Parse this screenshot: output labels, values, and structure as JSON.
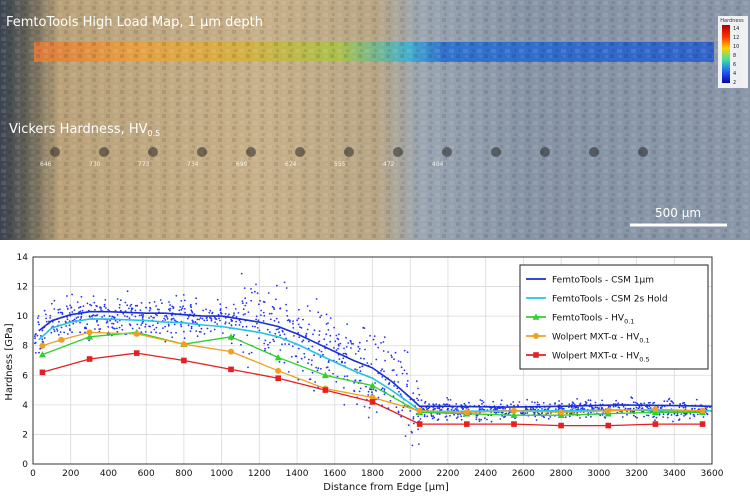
{
  "micrograph": {
    "map_title": "FemtoTools High Load Map, 1 µm depth",
    "vickers_title": "Vickers Hardness, HV",
    "vickers_sub": "0.5",
    "scalebar_label": "500 µm",
    "colorbar_title": "Hardness",
    "colorbar_ticks": [
      "14",
      "12",
      "10",
      "8",
      "6",
      "4",
      "2"
    ],
    "indent_values": [
      "646",
      "730",
      "773",
      "734",
      "690",
      "624",
      "555",
      "472",
      "404"
    ]
  },
  "colors": {
    "csm1": "#1a2fd0",
    "csm2": "#22c4e0",
    "hv01": "#2ed12e",
    "wolpert01": "#f0a020",
    "wolpert05": "#e62020",
    "scatter": "#2233ee"
  },
  "chart_data": {
    "type": "line",
    "xlabel": "Distance from Edge [µm]",
    "ylabel": "Hardness [GPa]",
    "xlim": [
      0,
      3600
    ],
    "ylim": [
      0,
      14
    ],
    "x_ticks": [
      0,
      200,
      400,
      600,
      800,
      1000,
      1200,
      1400,
      1600,
      1800,
      2000,
      2200,
      2400,
      2600,
      2800,
      3000,
      3200,
      3400,
      3600
    ],
    "y_ticks": [
      0,
      2,
      4,
      6,
      8,
      10,
      12,
      14
    ],
    "grid": true,
    "legend_position": "top-right",
    "legend": [
      {
        "label": "FemtoTools - CSM 1µm",
        "sub": ""
      },
      {
        "label": "FemtoTools - CSM 2s Hold",
        "sub": ""
      },
      {
        "label": "FemtoTools - HV",
        "sub": "0.1"
      },
      {
        "label": "Wolpert MXT-α - HV",
        "sub": "0.1"
      },
      {
        "label": "Wolpert MXT-α - HV",
        "sub": "0.5"
      }
    ],
    "series": [
      {
        "name": "FemtoTools - CSM 1µm",
        "marker": "none",
        "x": [
          30,
          100,
          200,
          300,
          400,
          500,
          600,
          700,
          800,
          900,
          1000,
          1100,
          1200,
          1300,
          1400,
          1500,
          1600,
          1700,
          1800,
          1900,
          2000,
          2050,
          2200,
          2500,
          2800,
          3100,
          3400,
          3600
        ],
        "y": [
          9.0,
          9.7,
          10.1,
          10.3,
          10.3,
          10.25,
          10.2,
          10.2,
          10.1,
          10.0,
          10.0,
          9.8,
          9.6,
          9.3,
          8.8,
          8.2,
          7.6,
          7.0,
          6.5,
          5.6,
          4.5,
          3.9,
          3.9,
          3.85,
          3.9,
          4.0,
          3.95,
          3.9
        ]
      },
      {
        "name": "FemtoTools - CSM 2s Hold",
        "marker": "none",
        "x": [
          30,
          100,
          200,
          300,
          400,
          500,
          600,
          700,
          800,
          900,
          1000,
          1100,
          1200,
          1300,
          1400,
          1500,
          1600,
          1700,
          1800,
          1900,
          2000,
          2050,
          2200,
          2500,
          2800,
          3100,
          3400,
          3600
        ],
        "y": [
          8.4,
          9.2,
          9.6,
          9.8,
          9.8,
          9.75,
          9.7,
          9.6,
          9.55,
          9.4,
          9.3,
          9.1,
          8.9,
          8.6,
          8.1,
          7.5,
          6.9,
          6.3,
          5.8,
          5.0,
          4.1,
          3.6,
          3.55,
          3.6,
          3.6,
          3.65,
          3.6,
          3.6
        ]
      },
      {
        "name": "FemtoTools - HV0.1",
        "marker": "triangle",
        "x": [
          50,
          300,
          550,
          800,
          1050,
          1300,
          1550,
          1800,
          2050,
          2300,
          2550,
          2800,
          3050,
          3300,
          3550
        ],
        "y": [
          7.4,
          8.6,
          8.9,
          8.1,
          8.6,
          7.2,
          6.0,
          5.3,
          3.5,
          3.4,
          3.3,
          3.3,
          3.4,
          3.5,
          3.5
        ]
      },
      {
        "name": "Wolpert MXT-α - HV0.1",
        "marker": "circle",
        "x": [
          50,
          150,
          300,
          550,
          800,
          1050,
          1300,
          1550,
          1800,
          2050,
          2300,
          2550,
          2800,
          3050,
          3300,
          3550
        ],
        "y": [
          8.0,
          8.4,
          8.9,
          8.8,
          8.1,
          7.6,
          6.3,
          5.1,
          4.5,
          3.6,
          3.5,
          3.6,
          3.5,
          3.6,
          3.7,
          3.6
        ]
      },
      {
        "name": "Wolpert MXT-α - HV0.5",
        "marker": "square",
        "x": [
          50,
          300,
          550,
          800,
          1050,
          1300,
          1550,
          1800,
          2050,
          2300,
          2550,
          2800,
          3050,
          3300,
          3550
        ],
        "y": [
          6.2,
          7.1,
          7.5,
          7.0,
          6.4,
          5.8,
          5.0,
          4.2,
          2.7,
          2.7,
          2.7,
          2.6,
          2.6,
          2.7,
          2.7
        ]
      }
    ]
  }
}
